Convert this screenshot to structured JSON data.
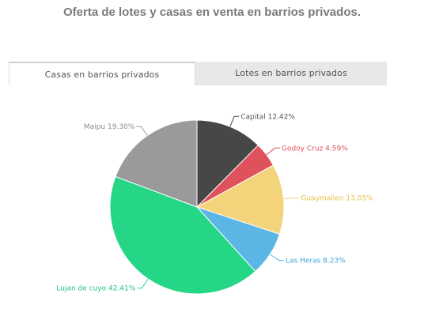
{
  "header": {
    "title": "Oferta de lotes y casas en venta en barrios privados."
  },
  "tabs": [
    {
      "label": "Casas en barrios privados",
      "active": true
    },
    {
      "label": "Lotes en barrios privados",
      "active": false
    }
  ],
  "chart_data": {
    "type": "pie",
    "categories": [
      "Capital",
      "Godoy Cruz",
      "Guaymallen",
      "Las Heras",
      "Lujan de cuyo",
      "Maipu"
    ],
    "values": [
      12.42,
      4.59,
      13.05,
      8.23,
      42.41,
      19.3
    ],
    "labels": [
      "Capital 12.42%",
      "Godoy Cruz 4.59%",
      "Guaymallen 13.05%",
      "Las Heras 8.23%",
      "Lujan de cuyo 42.41%",
      "Maipu 19.30%"
    ],
    "colors": [
      "#474747",
      "#e0525b",
      "#f4d47b",
      "#5bb5e5",
      "#24d686",
      "#9a9a9a"
    ],
    "label_colors": [
      "#555555",
      "#e0525b",
      "#e8c04a",
      "#3fa6da",
      "#22c47a",
      "#8a8a8a"
    ],
    "start_angle_deg": 0,
    "direction": "clockwise"
  }
}
